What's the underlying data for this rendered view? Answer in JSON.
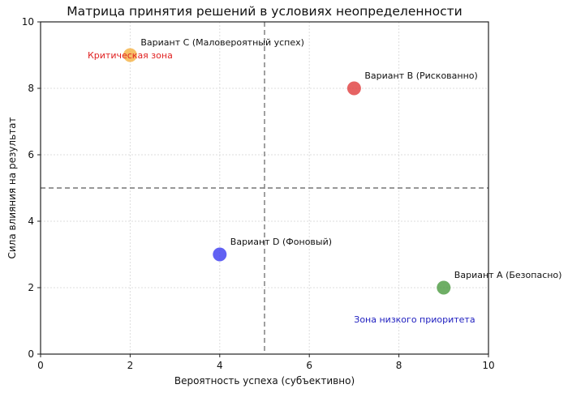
{
  "chart_data": {
    "type": "scatter",
    "title": "Матрица принятия решений в условиях неопределенности",
    "xlabel": "Вероятность успеха (субъективно)",
    "ylabel": "Сила влияния на результат",
    "xlim": [
      0,
      10
    ],
    "ylim": [
      0,
      10
    ],
    "xticks": [
      "0",
      "2",
      "4",
      "6",
      "8",
      "10"
    ],
    "yticks": [
      "0",
      "2",
      "4",
      "6",
      "8",
      "10"
    ],
    "grid": true,
    "points": [
      {
        "label": "Вариант A (Безопасно)",
        "x": 9,
        "y": 2,
        "color": "#4a9a3f"
      },
      {
        "label": "Вариант B (Рискованно)",
        "x": 7,
        "y": 8,
        "color": "#e03c3c"
      },
      {
        "label": "Вариант C (Маловероятный успех)",
        "x": 2,
        "y": 9,
        "color": "#f5b041"
      },
      {
        "label": "Вариант D (Фоновый)",
        "x": 4,
        "y": 3,
        "color": "#3a3af0"
      }
    ],
    "reference_lines": {
      "x": 5,
      "y": 5,
      "style": "dashed",
      "color": "#777777"
    },
    "annotations": [
      {
        "text": "Критическая зона",
        "x": 2,
        "y": 9,
        "color": "#e02020"
      },
      {
        "text": "Зона низкого приоритета",
        "x": 8.35,
        "y": 1.05,
        "color": "#2020c0"
      }
    ]
  }
}
